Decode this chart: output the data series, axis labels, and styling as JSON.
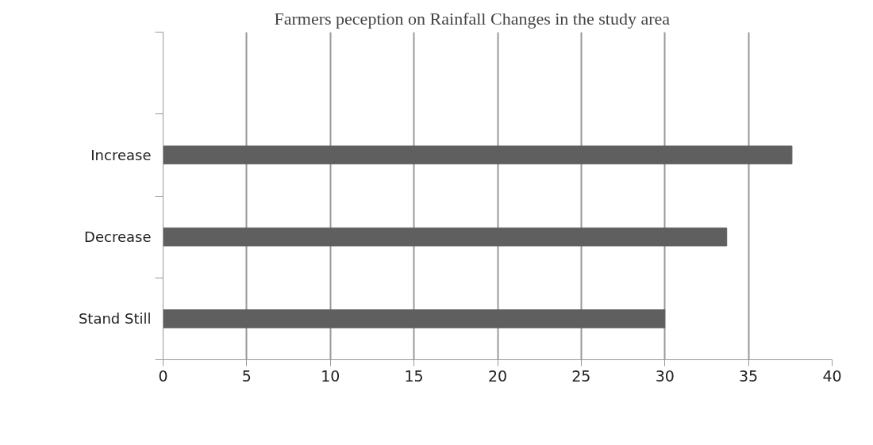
{
  "chart_data": {
    "type": "bar",
    "orientation": "horizontal",
    "title": "Farmers peception on Rainfall Changes in the study area",
    "categories": [
      null,
      "Increase",
      "Decrease",
      "Stand Still"
    ],
    "values": [
      null,
      37.6,
      33.7,
      30
    ],
    "color": "#5f5f5f",
    "xlim": [
      0,
      40
    ],
    "xticks": [
      0,
      5,
      10,
      15,
      20,
      25,
      30,
      35,
      40
    ],
    "grid": "x"
  }
}
